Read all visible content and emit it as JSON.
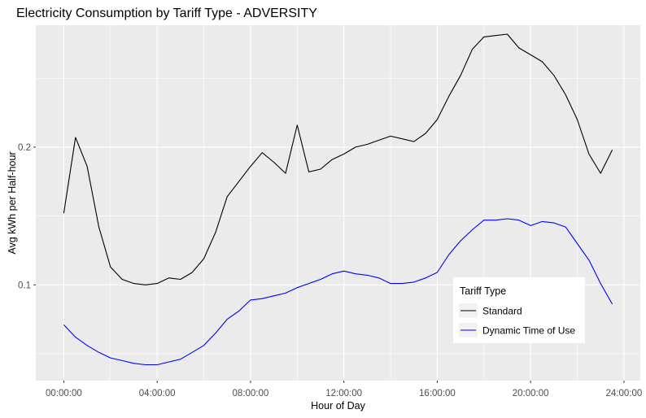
{
  "chart_data": {
    "type": "line",
    "title": "Electricity Consumption by Tariff Type - ADVERSITY",
    "xlabel": "Hour of Day",
    "ylabel": "Avg kWh per Half-hour",
    "x_tick_labels": [
      "00:00:00",
      "04:00:00",
      "08:00:00",
      "12:00:00",
      "16:00:00",
      "20:00:00",
      "24:00:00"
    ],
    "x_ticks_hours": [
      0,
      4,
      8,
      12,
      16,
      20,
      24
    ],
    "y_tick_labels": [
      "0.1",
      "0.2"
    ],
    "y_ticks": [
      0.1,
      0.2
    ],
    "xlim_hours": [
      -1.2,
      24.7
    ],
    "ylim": [
      0.0305,
      0.2885
    ],
    "grid": true,
    "legend": {
      "title": "Tariff Type",
      "position": "inside-bottom-right",
      "entries": [
        "Standard",
        "Dynamic Time of Use"
      ]
    },
    "x_hours": [
      0,
      0.5,
      1,
      1.5,
      2,
      2.5,
      3,
      3.5,
      4,
      4.5,
      5,
      5.5,
      6,
      6.5,
      7,
      7.5,
      8,
      8.5,
      9,
      9.5,
      10,
      10.5,
      11,
      11.5,
      12,
      12.5,
      13,
      13.5,
      14,
      14.5,
      15,
      15.5,
      16,
      16.5,
      17,
      17.5,
      18,
      18.5,
      19,
      19.5,
      20,
      20.5,
      21,
      21.5,
      22,
      22.5,
      23,
      23.5
    ],
    "series": [
      {
        "name": "Standard",
        "color": "#000000",
        "values": [
          0.152,
          0.207,
          0.186,
          0.142,
          0.113,
          0.104,
          0.101,
          0.1,
          0.101,
          0.105,
          0.104,
          0.109,
          0.119,
          0.138,
          0.164,
          0.175,
          0.186,
          0.196,
          0.189,
          0.181,
          0.216,
          0.182,
          0.184,
          0.191,
          0.195,
          0.2,
          0.202,
          0.205,
          0.208,
          0.206,
          0.204,
          0.21,
          0.22,
          0.237,
          0.252,
          0.271,
          0.28,
          0.281,
          0.282,
          0.272,
          0.267,
          0.262,
          0.252,
          0.238,
          0.22,
          0.195,
          0.181,
          0.198
        ]
      },
      {
        "name": "Dynamic Time of Use",
        "color": "#0000ff",
        "values": [
          0.071,
          0.062,
          0.056,
          0.051,
          0.047,
          0.045,
          0.043,
          0.042,
          0.042,
          0.044,
          0.046,
          0.051,
          0.056,
          0.065,
          0.075,
          0.081,
          0.089,
          0.09,
          0.092,
          0.094,
          0.098,
          0.101,
          0.104,
          0.108,
          0.11,
          0.108,
          0.107,
          0.105,
          0.101,
          0.101,
          0.102,
          0.105,
          0.109,
          0.122,
          0.132,
          0.14,
          0.147,
          0.147,
          0.148,
          0.147,
          0.143,
          0.146,
          0.145,
          0.142,
          0.13,
          0.118,
          0.101,
          0.086
        ]
      }
    ]
  }
}
